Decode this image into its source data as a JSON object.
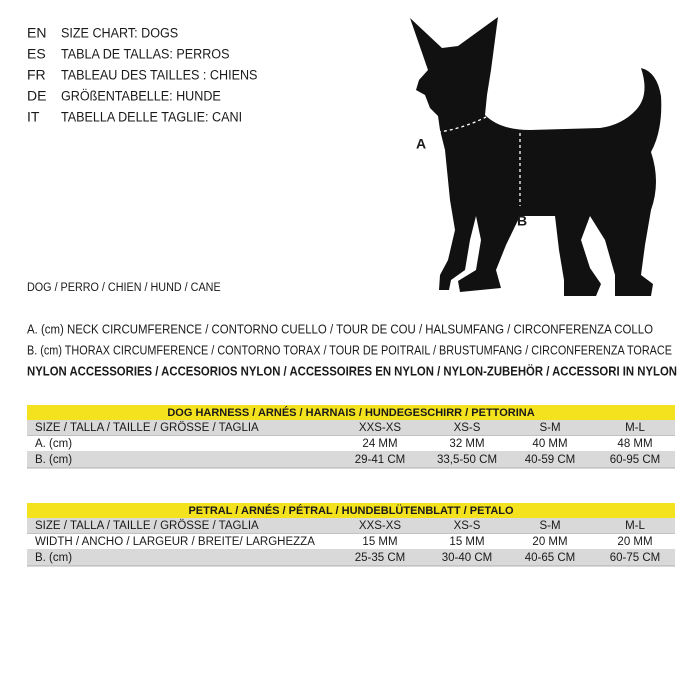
{
  "languages": [
    {
      "code": "EN",
      "text": "SIZE CHART: DOGS"
    },
    {
      "code": "ES",
      "text": "TABLA DE TALLAS: PERROS"
    },
    {
      "code": "FR",
      "text": "TABLEAU DES TAILLES : CHIENS"
    },
    {
      "code": "DE",
      "text": "GRÖßENTABELLE: HUNDE"
    },
    {
      "code": "IT",
      "text": "TABELLA DELLE TAGLIE: CANI"
    }
  ],
  "figure": {
    "label_a": "A",
    "label_b": "B"
  },
  "subtitle": "DOG / PERRO / CHIEN / HUND / CANE",
  "definitions": [
    "A. (cm) NECK CIRCUMFERENCE / CONTORNO CUELLO / TOUR DE COU / HALSUMFANG / CIRCONFERENZA COLLO",
    "B. (cm) THORAX CIRCUMFERENCE / CONTORNO TORAX / TOUR DE POITRAIL / BRUSTUMFANG / CIRCONFERENZA TORACE",
    "NYLON ACCESSORIES / ACCESORIOS NYLON / ACCESSOIRES EN NYLON / NYLON-ZUBEHÖR / ACCESSORI IN NYLON"
  ],
  "tables": [
    {
      "title": "DOG HARNESS / ARNÉS / HARNAIS / HUNDEGESCHIRR / PETTORINA",
      "rows": [
        [
          "SIZE / TALLA / TAILLE / GRÖSSE / TAGLIA",
          "XXS-XS",
          "XS-S",
          "S-M",
          "M-L"
        ],
        [
          "A. (cm)",
          "24 MM",
          "32 MM",
          "40 MM",
          "48 MM"
        ],
        [
          "B. (cm)",
          "29-41 CM",
          "33,5-50 CM",
          "40-59 CM",
          "60-95 CM"
        ]
      ]
    },
    {
      "title": "PETRAL / ARNÉS  / PÉTRAL / HUNDEBLÜTENBLATT / PETALO",
      "rows": [
        [
          "SIZE / TALLA / TAILLE / GRÖSSE / TAGLIA",
          "XXS-XS",
          "XS-S",
          "S-M",
          "M-L"
        ],
        [
          "WIDTH / ANCHO / LARGEUR / BREITE/ LARGHEZZA",
          "15 MM",
          "15 MM",
          "20 MM",
          "20 MM"
        ],
        [
          "B. (cm)",
          "25-35 CM",
          "30-40 CM",
          "40-65 CM",
          "60-75 CM"
        ]
      ]
    }
  ]
}
